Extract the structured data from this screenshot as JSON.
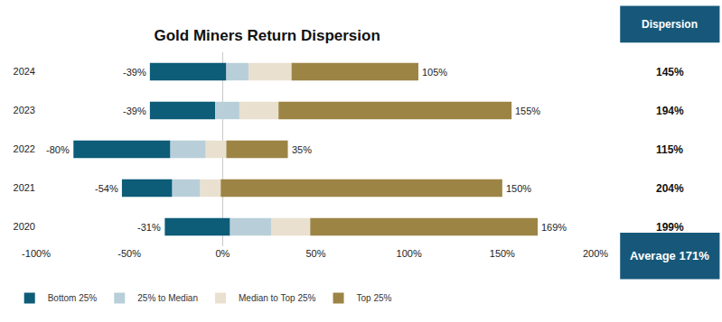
{
  "chart_data": {
    "type": "bar",
    "title": "Gold Miners Return Dispersion",
    "orientation": "horizontal",
    "categories": [
      "2024",
      "2023",
      "2022",
      "2021",
      "2020"
    ],
    "series": [
      {
        "name": "Bottom 25%",
        "color": "#0d5c78",
        "base": [
          -39,
          -39,
          -80,
          -54,
          -31
        ],
        "values": [
          2,
          -4,
          -28,
          -27,
          4
        ],
        "base_labels": [
          "-39%",
          "-39%",
          "-80%",
          "-54%",
          "-31%"
        ]
      },
      {
        "name": "25% to Median",
        "color": "#b8cfd9",
        "base": [
          2,
          -4,
          -28,
          -27,
          4
        ],
        "values": [
          14,
          9,
          -9,
          -12,
          26
        ]
      },
      {
        "name": "Median to Top 25%",
        "color": "#e9e0cf",
        "base": [
          14,
          9,
          -9,
          -12,
          26
        ],
        "values": [
          37,
          30,
          2,
          -1,
          47
        ]
      },
      {
        "name": "Top 25%",
        "color": "#9c8445",
        "base": [
          37,
          30,
          2,
          -1,
          47
        ],
        "values": [
          105,
          155,
          35,
          150,
          169
        ],
        "value_labels": [
          "105%",
          "155%",
          "35%",
          "150%",
          "169%"
        ]
      }
    ],
    "xlim": [
      -100,
      200
    ],
    "xticks": [
      {
        "value": -100,
        "label": "-100%"
      },
      {
        "value": -50,
        "label": "-50%"
      },
      {
        "value": 0,
        "label": "0%"
      },
      {
        "value": 50,
        "label": "50%"
      },
      {
        "value": 100,
        "label": "100%"
      },
      {
        "value": 150,
        "label": "150%"
      },
      {
        "value": 200,
        "label": "200%"
      }
    ],
    "grid": false,
    "legend": "bottom",
    "data_labels": true,
    "dispersion": {
      "header": "Dispersion",
      "labels": [
        "145%",
        "194%",
        "115%",
        "204%",
        "199%"
      ],
      "average": "Average 171%"
    }
  }
}
